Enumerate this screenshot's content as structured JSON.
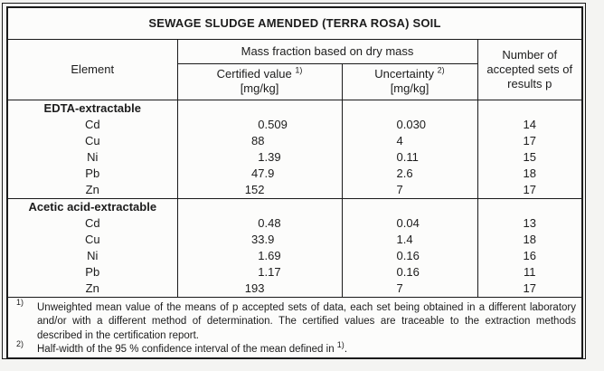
{
  "colors": {
    "border": "#1a1a1a",
    "page_bg": "#f4f4f2",
    "table_bg": "#fcfcfb",
    "text": "#1c1c1c"
  },
  "title": "SEWAGE SLUDGE AMENDED (TERRA ROSA) SOIL",
  "columns": {
    "element": "Element",
    "mass_fraction_group": "Mass fraction based on dry mass",
    "certified": {
      "label": "Certified value",
      "sup": "1)",
      "unit": "[mg/kg]"
    },
    "uncertainty": {
      "label": "Uncertainty",
      "sup": "2)",
      "unit": "[mg/kg]"
    },
    "accepted": "Number of accepted sets of results p"
  },
  "sections": [
    {
      "label": "EDTA-extractable",
      "rows": [
        {
          "element": "Cd",
          "certified": "0.509",
          "uncertainty": "0.030",
          "accepted": "14"
        },
        {
          "element": "Cu",
          "certified": "88",
          "uncertainty": "4",
          "accepted": "17"
        },
        {
          "element": "Ni",
          "certified": "1.39",
          "uncertainty": "0.11",
          "accepted": "15"
        },
        {
          "element": "Pb",
          "certified": "47.9",
          "uncertainty": "2.6",
          "accepted": "18"
        },
        {
          "element": "Zn",
          "certified": "152",
          "uncertainty": "7",
          "accepted": "17"
        }
      ]
    },
    {
      "label": "Acetic acid-extractable",
      "rows": [
        {
          "element": "Cd",
          "certified": "0.48",
          "uncertainty": "0.04",
          "accepted": "13"
        },
        {
          "element": "Cu",
          "certified": "33.9",
          "uncertainty": "1.4",
          "accepted": "18"
        },
        {
          "element": "Ni",
          "certified": "1.69",
          "uncertainty": "0.16",
          "accepted": "16"
        },
        {
          "element": "Pb",
          "certified": "1.17",
          "uncertainty": "0.16",
          "accepted": "11"
        },
        {
          "element": "Zn",
          "certified": "193",
          "uncertainty": "7",
          "accepted": "17"
        }
      ]
    }
  ],
  "footnotes": [
    {
      "marker": "1)",
      "text": "Unweighted mean value of the means of p accepted sets of data, each set being obtained in a different laboratory and/or with a different method of determination. The certified values are traceable to the extraction methods described in the certification report."
    },
    {
      "marker": "2)",
      "text_before": "Half-width of the 95 % confidence interval of the mean defined in ",
      "ref": "1)",
      "text_after": "."
    }
  ]
}
